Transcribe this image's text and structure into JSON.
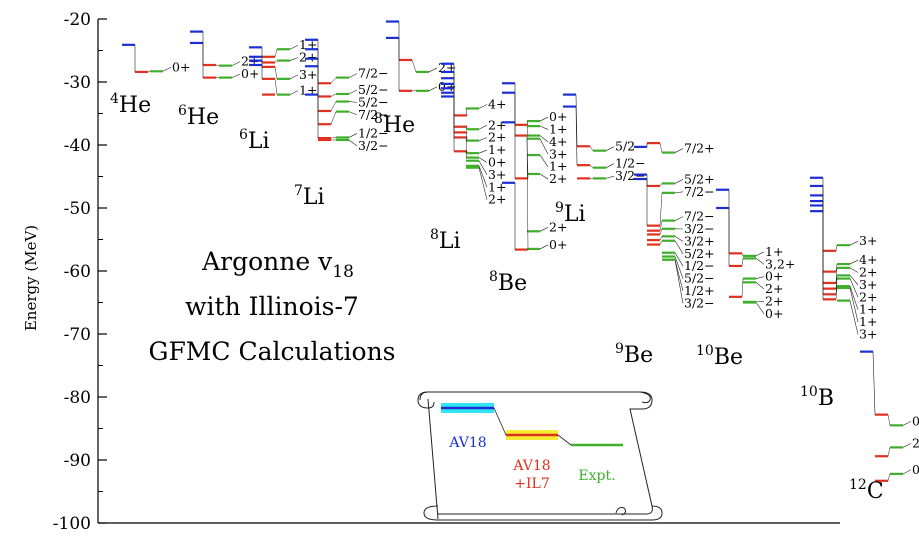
{
  "chart_data": {
    "type": "level-scheme",
    "ylabel": "Energy (MeV)",
    "ylim": [
      -100,
      -20
    ],
    "yticks": [
      -20,
      -30,
      -40,
      -50,
      -60,
      -70,
      -80,
      -90,
      -100
    ],
    "colors": {
      "av18": "#1a2fd6",
      "il7": "#e0301e",
      "expt": "#3fae2a",
      "axis": "#000000",
      "av18_band": "#33e5f0",
      "il7_band": "#f5ec33",
      "expt_band": "#a8ee9a",
      "alt_band": "#ee77ee"
    },
    "annotation": {
      "line1": "Argonne v",
      "line1_sub": "18",
      "line2": "with Illinois-7",
      "line3": "GFMC Calculations"
    },
    "legend": {
      "av18": "AV18",
      "il7_line1": "AV18",
      "il7_line2": "+IL7",
      "expt": "Expt."
    },
    "nuclei": [
      {
        "mass": "4",
        "symbol": "He",
        "av18": [
          -24.1
        ],
        "il7": [
          -28.4
        ],
        "expt": [
          {
            "E": -28.3,
            "label": "0+"
          }
        ]
      },
      {
        "mass": "6",
        "symbol": "He",
        "av18": [
          -22.0,
          -23.8
        ],
        "il7": [
          -27.3,
          -29.3
        ],
        "expt": [
          {
            "E": -27.4,
            "label": "2+"
          },
          {
            "E": -29.3,
            "label": "0+"
          }
        ]
      },
      {
        "mass": "6",
        "symbol": "Li",
        "av18": [
          -24.5,
          -26.0,
          -26.6,
          -27.3
        ],
        "il7": [
          -26.0,
          -26.9,
          -27.6,
          -29.5,
          -32.0
        ],
        "expt": [
          {
            "E": -24.8,
            "label": "1+"
          },
          {
            "E": -26.6,
            "label": "2+"
          },
          {
            "E": -29.5,
            "label": "3+"
          },
          {
            "E": -32.0,
            "label": "1+"
          }
        ]
      },
      {
        "mass": "7",
        "symbol": "Li",
        "av18": [
          -23.3,
          -24.8,
          -26.3,
          -27.5,
          -32.0
        ],
        "il7": [
          -30.2,
          -32.3,
          -34.6,
          -36.7,
          -38.9,
          -39.2
        ],
        "expt": [
          {
            "E": -29.3,
            "label": "7/2−"
          },
          {
            "E": -31.9,
            "label": "5/2−"
          },
          {
            "E": -33.1,
            "label": "5/2−"
          },
          {
            "E": -34.7,
            "label": "7/2−"
          },
          {
            "E": -38.8,
            "label": "1/2−"
          },
          {
            "E": -39.2,
            "label": "3/2−"
          }
        ]
      },
      {
        "mass": "8",
        "symbol": "He",
        "av18": [
          -20.4,
          -23.0
        ],
        "il7": [
          -26.5,
          -31.4
        ],
        "expt": [
          {
            "E": -28.4,
            "label": "2+"
          },
          {
            "E": -31.4,
            "label": "0+"
          }
        ]
      },
      {
        "mass": "8",
        "symbol": "Li",
        "av18": [
          -27.1,
          -28.4,
          -29.4,
          -30.3,
          -31.0,
          -31.7,
          -32.3
        ],
        "il7": [
          -35.3,
          -37.1,
          -38.0,
          -38.8,
          -41.0
        ],
        "expt": [
          {
            "E": -34.2,
            "label": "4+"
          },
          {
            "E": -37.5,
            "label": "2+"
          },
          {
            "E": -39.3,
            "label": "2+"
          },
          {
            "E": -41.3,
            "label": "1+"
          },
          {
            "E": -42.0,
            "label": "0+"
          },
          {
            "E": -42.5,
            "label": "3+"
          },
          {
            "E": -43.3,
            "label": "1+"
          },
          {
            "E": -43.6,
            "label": "2+"
          }
        ]
      },
      {
        "mass": "8",
        "symbol": "Be",
        "av18": [
          -30.2,
          -31.7,
          -36.4,
          -46.0
        ],
        "il7": [
          -36.8,
          -38.5,
          -45.3,
          -56.6
        ],
        "expt": [
          {
            "E": -36.2,
            "label": "0+"
          },
          {
            "E": -37.0,
            "label": "1+"
          },
          {
            "E": -38.5,
            "label": "4+"
          },
          {
            "E": -39.0,
            "label": "3+"
          },
          {
            "E": -41.6,
            "label": "1+"
          },
          {
            "E": -44.6,
            "label": "2+"
          },
          {
            "E": -53.7,
            "label": "2+"
          },
          {
            "E": -56.5,
            "label": "0+"
          }
        ]
      },
      {
        "mass": "9",
        "symbol": "Li",
        "av18": [
          -32.0,
          -33.9
        ],
        "il7": [
          -40.2,
          -43.2,
          -45.3
        ],
        "expt": [
          {
            "E": -40.9,
            "label": "5/2−"
          },
          {
            "E": -43.6,
            "label": "1/2−"
          },
          {
            "E": -45.3,
            "label": "3/2−"
          }
        ]
      },
      {
        "mass": "9",
        "symbol": "Be",
        "av18": [
          -40.3,
          -44.7,
          -45.4
        ],
        "il7": [
          -39.7,
          -46.5,
          -52.8,
          -53.6,
          -54.2,
          -55.1,
          -55.8
        ],
        "expt": [
          {
            "E": -41.2,
            "label": "7/2+"
          },
          {
            "E": -46.1,
            "label": "5/2+"
          },
          {
            "E": -47.6,
            "label": "7/2−"
          },
          {
            "E": -52.0,
            "label": "7/2−"
          },
          {
            "E": -53.3,
            "label": "3/2−"
          },
          {
            "E": -54.5,
            "label": "3/2+"
          },
          {
            "E": -55.2,
            "label": "5/2+"
          },
          {
            "E": -57.1,
            "label": "1/2−"
          },
          {
            "E": -57.7,
            "label": "5/2−"
          },
          {
            "E": -58.2,
            "label": "1/2+"
          },
          {
            "E": -58.2,
            "label": "3/2−"
          }
        ]
      },
      {
        "mass": "10",
        "symbol": "Be",
        "av18": [
          -47.1,
          -50.0
        ],
        "il7": [
          -57.2,
          -59.2,
          -64.1
        ],
        "expt": [
          {
            "E": -57.6,
            "label": "1+"
          },
          {
            "E": -58.0,
            "label": "3,2+"
          },
          {
            "E": -61.2,
            "label": "0+"
          },
          {
            "E": -61.8,
            "label": "2+"
          },
          {
            "E": -64.9,
            "label": "2+"
          },
          {
            "E": -65.0,
            "label": "0+"
          }
        ]
      },
      {
        "mass": "10",
        "symbol": "B",
        "av18": [
          -45.2,
          -46.5,
          -48.0,
          -48.9,
          -49.6,
          -50.5
        ],
        "il7": [
          -56.8,
          -60.1,
          -61.9,
          -62.8,
          -63.7,
          -64.5
        ],
        "expt": [
          {
            "E": -55.9,
            "label": "3+"
          },
          {
            "E": -58.9,
            "label": "4+"
          },
          {
            "E": -59.5,
            "label": "2+"
          },
          {
            "E": -60.7,
            "label": "3+"
          },
          {
            "E": -61.2,
            "label": "2+"
          },
          {
            "E": -62.4,
            "label": "1+"
          },
          {
            "E": -62.7,
            "label": "1+"
          },
          {
            "E": -64.7,
            "label": "3+"
          }
        ]
      },
      {
        "mass": "12",
        "symbol": "C",
        "av18": [
          -72.8
        ],
        "il7": [
          -82.8,
          -89.4,
          -93.3
        ],
        "expt": [
          {
            "E": -84.5,
            "label": "0+"
          },
          {
            "E": -88.0,
            "label": "2+"
          },
          {
            "E": -92.2,
            "label": "0+"
          }
        ]
      }
    ]
  }
}
